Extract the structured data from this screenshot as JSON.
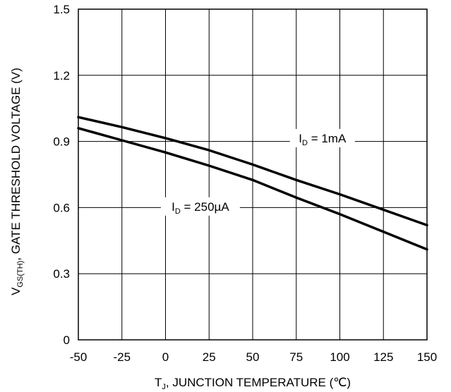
{
  "chart_data": {
    "type": "line",
    "xlabel": {
      "main": "T",
      "sub": "J",
      "rest": ", JUNCTION TEMPERATURE (℃)"
    },
    "ylabel": {
      "main": "V",
      "sub": "GS(TH)",
      "rest": ", GATE THRESHOLD VOLTAGE (V)"
    },
    "xlim": [
      -50,
      150
    ],
    "ylim": [
      0,
      1.5
    ],
    "x_ticks": [
      "-50",
      "-25",
      "0",
      "25",
      "50",
      "75",
      "100",
      "125",
      "150"
    ],
    "y_ticks": [
      "0",
      "0.3",
      "0.6",
      "0.9",
      "1.2",
      "1.5"
    ],
    "grid": true,
    "series": [
      {
        "label": {
          "main": "I",
          "sub": "D",
          "rest": " = 1mA"
        },
        "x": [
          -50,
          -25,
          0,
          25,
          50,
          75,
          100,
          125,
          150
        ],
        "y": [
          1.01,
          0.965,
          0.915,
          0.86,
          0.795,
          0.725,
          0.66,
          0.59,
          0.52
        ]
      },
      {
        "label": {
          "main": "I",
          "sub": "D",
          "rest": " = 250µA"
        },
        "x": [
          -50,
          -25,
          0,
          25,
          50,
          75,
          100,
          125,
          150
        ],
        "y": [
          0.96,
          0.905,
          0.85,
          0.79,
          0.725,
          0.645,
          0.57,
          0.49,
          0.41
        ]
      }
    ]
  }
}
